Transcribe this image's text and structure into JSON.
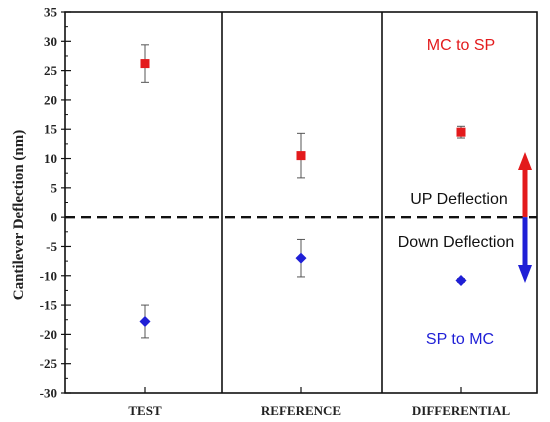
{
  "chart_data": {
    "type": "scatter",
    "title": "",
    "xlabel": "",
    "ylabel": "Cantilever Deflection (nm)",
    "categories": [
      "TEST",
      "REFERENCE",
      "DIFFERENTIAL"
    ],
    "ylim": [
      -30,
      35
    ],
    "yticks": [
      -30,
      -25,
      -20,
      -15,
      -10,
      -5,
      0,
      5,
      10,
      15,
      20,
      25,
      30,
      35
    ],
    "grid": false,
    "series": [
      {
        "marker": "square",
        "color": "#e31a1c",
        "values": [
          26.2,
          10.5,
          14.5
        ],
        "errors": [
          3.2,
          3.8,
          1.0
        ]
      },
      {
        "marker": "diamond",
        "color": "#1f1fd6",
        "values": [
          -17.8,
          -7.0,
          -10.8
        ],
        "errors": [
          2.8,
          3.2,
          0.3
        ]
      }
    ],
    "zero_line": "dashed",
    "annotations": {
      "mc_to_sp": "MC to SP",
      "up_deflection": "UP Deflection",
      "down_deflection": "Down Deflection",
      "sp_to_mc": "SP to MC"
    },
    "arrows": {
      "up_color": "#e31a1c",
      "down_color": "#1f1fd6"
    }
  }
}
